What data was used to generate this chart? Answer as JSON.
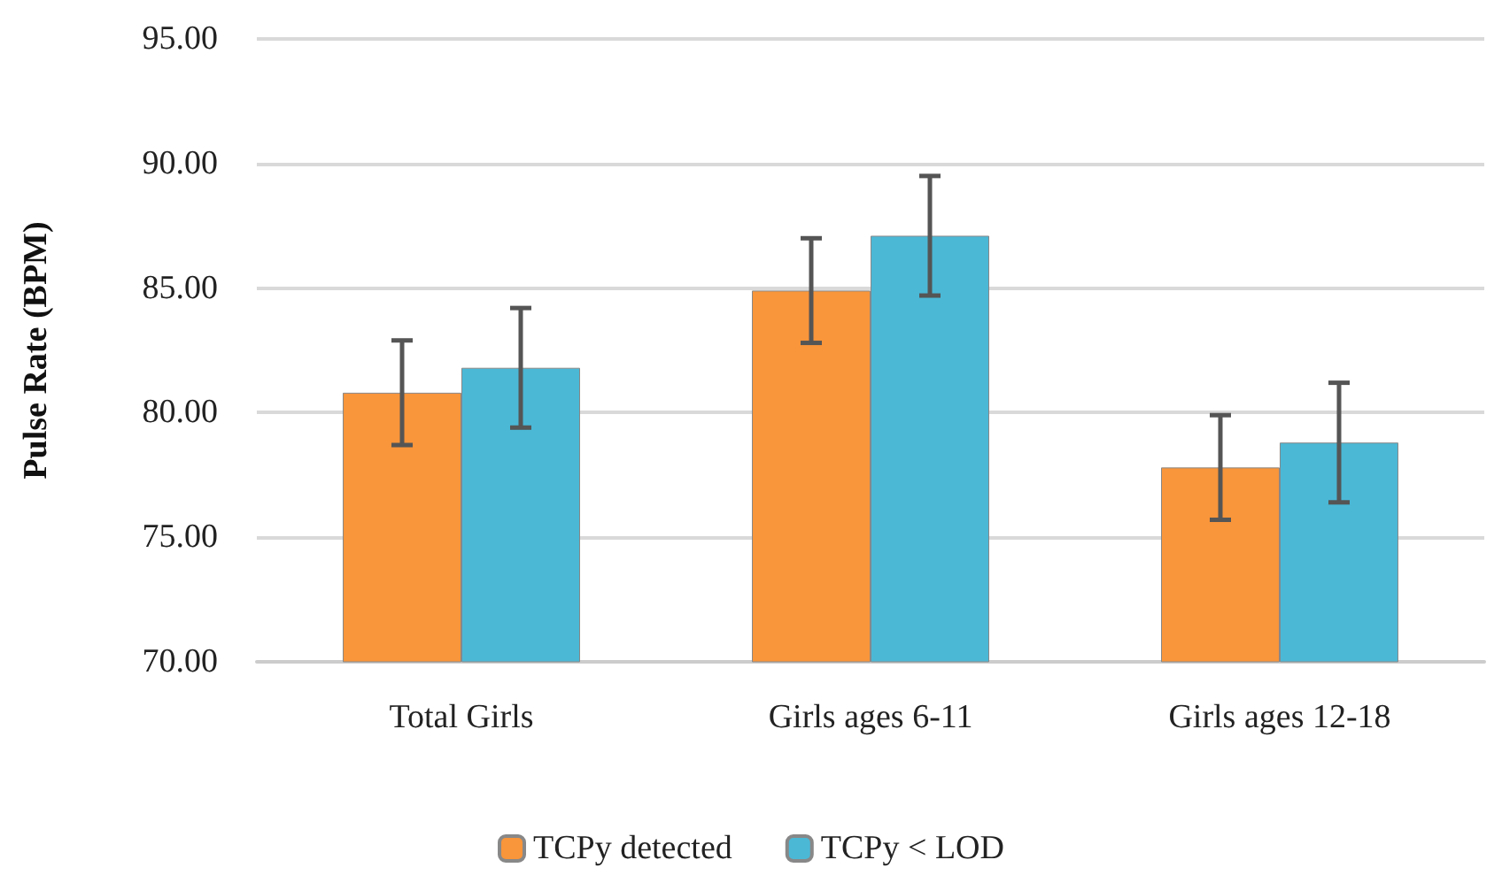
{
  "chart_data": {
    "type": "bar",
    "ylabel": "Pulse Rate (BPM)",
    "categories": [
      "Total Girls",
      "Girls ages 6-11",
      "Girls ages 12-18"
    ],
    "series": [
      {
        "name": "TCPy detected",
        "color": "#f9953a",
        "values": [
          80.8,
          84.9,
          77.8
        ],
        "errors": [
          2.1,
          2.1,
          2.1
        ]
      },
      {
        "name": "TCPy < LOD",
        "color": "#4bb8d6",
        "values": [
          81.8,
          87.1,
          78.8
        ],
        "errors": [
          2.4,
          2.4,
          2.4
        ]
      }
    ],
    "ylim": [
      70,
      95
    ],
    "yticks": [
      {
        "value": 70,
        "label": "70.00"
      },
      {
        "value": 75,
        "label": "75.00"
      },
      {
        "value": 80,
        "label": "80.00"
      },
      {
        "value": 85,
        "label": "85.00"
      },
      {
        "value": 90,
        "label": "90.00"
      },
      {
        "value": 95,
        "label": "95.00"
      }
    ],
    "grid": "y",
    "legend": "bottom"
  }
}
